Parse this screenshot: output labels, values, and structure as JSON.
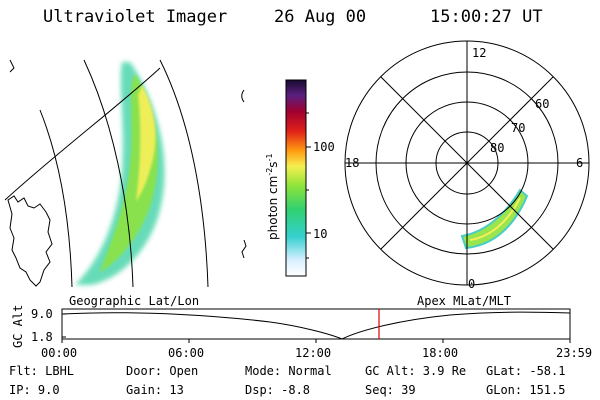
{
  "header": {
    "instrument": "Ultraviolet Imager",
    "date": "26 Aug 00",
    "time": "15:00:27 UT"
  },
  "colorbar": {
    "unit_label": "photon cm-2s-1",
    "ticks": [
      "100",
      "10"
    ]
  },
  "polar_plot": {
    "mlt_labels": {
      "top": "12",
      "left": "18",
      "right": "6",
      "bottom": "0"
    },
    "lat_labels": [
      "60",
      "70",
      "80"
    ]
  },
  "panel_labels": {
    "left": "Geographic Lat/Lon",
    "right": "Apex MLat/MLT"
  },
  "altitude_strip": {
    "ylabel": "GC Alt",
    "yticks": [
      "9.0",
      "1.8"
    ],
    "xticks": [
      "00:00",
      "06:00",
      "12:00",
      "18:00",
      "23:59"
    ],
    "marker_time_hours": 15.0
  },
  "info": {
    "filter": "Flt: LBHL",
    "ip": "IP: 9.0",
    "door": "Door: Open",
    "gain": "Gain: 13",
    "mode": "Mode: Normal",
    "dsp": "Dsp: -8.8",
    "gc_alt": "GC Alt: 3.9 Re",
    "seq": "Seq: 39",
    "glat": "GLat: -58.1",
    "glon": "GLon: 151.5"
  },
  "colors": {
    "marker": "#e00000",
    "bar_top": "#1a0a30",
    "bar_bottom": "#ffffff"
  }
}
